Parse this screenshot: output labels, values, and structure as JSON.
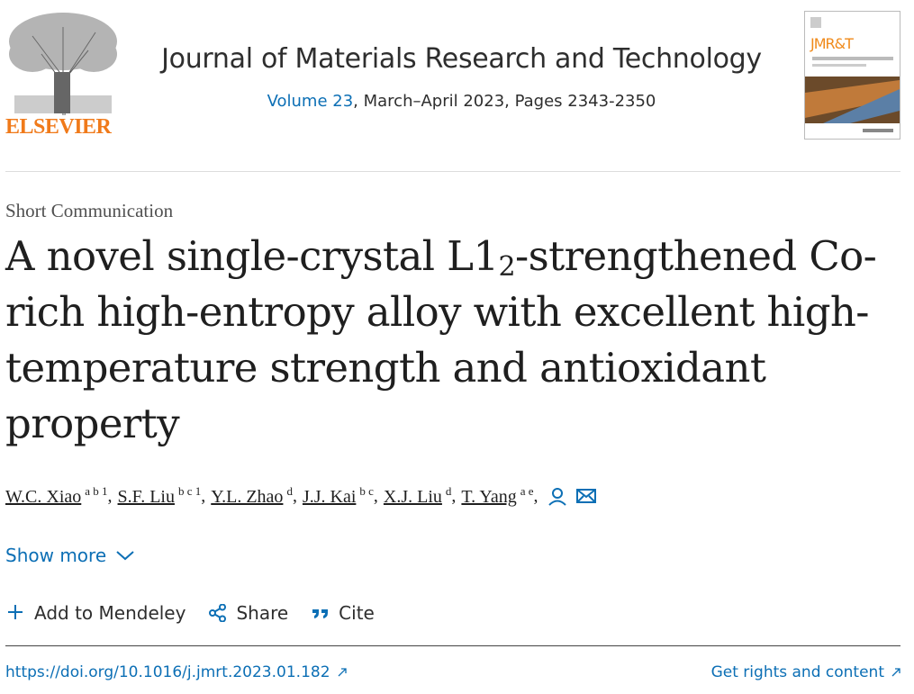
{
  "header": {
    "publisher": "ELSEVIER",
    "journal": "Journal of Materials Research and Technology",
    "volume": "Volume 23",
    "issue_info": ", March–April 2023, Pages 2343-2350",
    "cover_title": "JMR&T"
  },
  "article": {
    "type": "Short Communication",
    "title_before": "A novel single-crystal L1",
    "title_sub": "2",
    "title_after": "-strengthened Co-rich high-entropy alloy with excellent high-temperature strength and antioxidant property",
    "separator": ",",
    "authors": [
      {
        "name": "W.C. Xiao",
        "sup": "a b 1"
      },
      {
        "name": "S.F. Liu",
        "sup": "b c 1"
      },
      {
        "name": "Y.L. Zhao",
        "sup": "d"
      },
      {
        "name": "J.J. Kai",
        "sup": "b c"
      },
      {
        "name": "X.J. Liu",
        "sup": "d"
      },
      {
        "name": "T. Yang",
        "sup": "a e"
      }
    ],
    "show_more": "Show more",
    "actions": [
      "Add to Mendeley",
      "Share",
      "Cite"
    ],
    "doi": "https://doi.org/10.1016/j.jmrt.2023.01.182",
    "rights": "Get rights and content"
  }
}
